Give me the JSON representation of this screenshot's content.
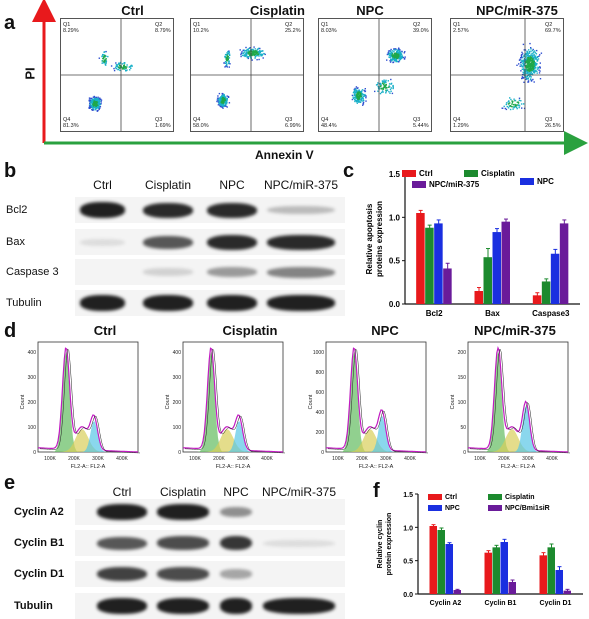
{
  "panels": {
    "a": {
      "letter": "a",
      "headers": [
        "Ctrl",
        "Cisplatin",
        "NPC",
        "NPC/miR-375"
      ],
      "y_axis_label": "PI",
      "x_axis_label": "Annexin V",
      "quadrants": [
        {
          "q1": "Q1\n8.29%",
          "q2": "Q2\n8.79%",
          "q3": "Q3\n1.69%",
          "q4": "Q4\n81.3%"
        },
        {
          "q1": "Q1\n10.2%",
          "q2": "Q2\n25.2%",
          "q3": "Q3\n6.99%",
          "q4": "Q4\n58.0%"
        },
        {
          "q1": "Q1\n8.03%",
          "q2": "Q2\n39.0%",
          "q3": "Q3\n5.44%",
          "q4": "Q4\n48.4%"
        },
        {
          "q1": "Q1\n2.57%",
          "q2": "Q2\n69.7%",
          "q3": "Q3\n26.5%",
          "q4": "Q4\n1.29%"
        }
      ]
    },
    "b": {
      "letter": "b",
      "lanes": [
        "Ctrl",
        "Cisplatin",
        "NPC",
        "NPC/miR-375"
      ],
      "rows": [
        "Bcl2",
        "Bax",
        "Caspase 3",
        "Tubulin"
      ]
    },
    "d": {
      "letter": "d",
      "headers": [
        "Ctrl",
        "Cisplatin",
        "NPC",
        "NPC/miR-375"
      ],
      "ylabel": "Count",
      "xlabel": "FL2-A:: FL2-A",
      "xticks": [
        "100K",
        "200K",
        "300K",
        "400K"
      ],
      "yticks": [
        [
          "0",
          "100",
          "200",
          "300",
          "400"
        ],
        [
          "0",
          "100",
          "200",
          "300",
          "400"
        ],
        [
          "0",
          "200",
          "400",
          "600",
          "800",
          "1000"
        ],
        [
          "0",
          "50",
          "100",
          "150",
          "200"
        ]
      ]
    },
    "e": {
      "letter": "e",
      "lanes": [
        "Ctrl",
        "Cisplatin",
        "NPC",
        "NPC/miR-375"
      ],
      "rows": [
        "Cyclin A2",
        "Cyclin B1",
        "Cyclin D1",
        "Tubulin"
      ]
    }
  },
  "colors": {
    "red": "#e8191c",
    "green": "#1c8a2e",
    "blue": "#1a2fe0",
    "purple": "#6a1b9a"
  },
  "chart_data": [
    {
      "panel": "c",
      "letter": "c",
      "type": "bar",
      "categories": [
        "Bcl2",
        "Bax",
        "Caspase3"
      ],
      "ylabel": "Relative apoptosis\nproteins expression",
      "ylim": [
        0,
        1.5
      ],
      "yticks": [
        "0.0",
        "0.5",
        "1.0",
        "1.5"
      ],
      "legend": [
        "Ctrl",
        "Cisplatin",
        "NPC",
        "NPC/miR-375"
      ],
      "series": [
        {
          "name": "Ctrl",
          "values": [
            1.05,
            0.15,
            0.1
          ],
          "errors": [
            0.03,
            0.04,
            0.03
          ]
        },
        {
          "name": "Cisplatin",
          "values": [
            0.88,
            0.54,
            0.26
          ],
          "errors": [
            0.03,
            0.1,
            0.03
          ]
        },
        {
          "name": "NPC",
          "values": [
            0.93,
            0.83,
            0.58
          ],
          "errors": [
            0.04,
            0.04,
            0.05
          ]
        },
        {
          "name": "NPC/miR-375",
          "values": [
            0.41,
            0.95,
            0.93
          ],
          "errors": [
            0.06,
            0.03,
            0.04
          ]
        }
      ]
    },
    {
      "panel": "f",
      "letter": "f",
      "type": "bar",
      "categories": [
        "Cyclin A2",
        "Cyclin B1",
        "Cyclin D1"
      ],
      "ylabel": "Relative cyclin\nprotein expression",
      "ylim": [
        0,
        1.5
      ],
      "yticks": [
        "0.0",
        "0.5",
        "1.0",
        "1.5"
      ],
      "legend": [
        "Ctrl",
        "Cisplatin",
        "NPC",
        "NPC/Bmi1siR"
      ],
      "series": [
        {
          "name": "Ctrl",
          "values": [
            1.02,
            0.62,
            0.58
          ],
          "errors": [
            0.02,
            0.03,
            0.04
          ]
        },
        {
          "name": "Cisplatin",
          "values": [
            0.96,
            0.7,
            0.7
          ],
          "errors": [
            0.03,
            0.03,
            0.05
          ]
        },
        {
          "name": "NPC",
          "values": [
            0.75,
            0.78,
            0.36
          ],
          "errors": [
            0.02,
            0.04,
            0.05
          ]
        },
        {
          "name": "NPC/Bmi1siR",
          "values": [
            0.06,
            0.18,
            0.05
          ],
          "errors": [
            0.01,
            0.03,
            0.02
          ]
        }
      ]
    }
  ]
}
